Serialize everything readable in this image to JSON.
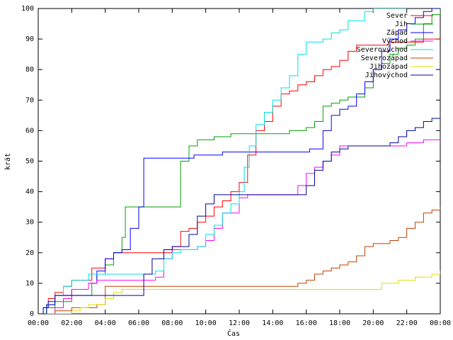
{
  "chart_data": {
    "type": "line",
    "title": "",
    "xlabel": "Čas",
    "ylabel": "krát",
    "xlim": [
      0,
      24
    ],
    "ylim": [
      0,
      100
    ],
    "x_ticks": [
      {
        "value": 0,
        "label": "00:00"
      },
      {
        "value": 2,
        "label": "02:00"
      },
      {
        "value": 4,
        "label": "04:00"
      },
      {
        "value": 6,
        "label": "06:00"
      },
      {
        "value": 8,
        "label": "08:00"
      },
      {
        "value": 10,
        "label": "10:00"
      },
      {
        "value": 12,
        "label": "12:00"
      },
      {
        "value": 14,
        "label": "14:00"
      },
      {
        "value": 16,
        "label": "16:00"
      },
      {
        "value": 18,
        "label": "18:00"
      },
      {
        "value": 20,
        "label": "20:00"
      },
      {
        "value": 22,
        "label": "22:00"
      },
      {
        "value": 24,
        "label": "00:00"
      }
    ],
    "y_ticks": [
      {
        "value": 0,
        "label": "0"
      },
      {
        "value": 10,
        "label": "10"
      },
      {
        "value": 20,
        "label": "20"
      },
      {
        "value": 30,
        "label": "30"
      },
      {
        "value": 40,
        "label": "40"
      },
      {
        "value": 50,
        "label": "50"
      },
      {
        "value": 60,
        "label": "60"
      },
      {
        "value": 70,
        "label": "70"
      },
      {
        "value": 80,
        "label": "80"
      },
      {
        "value": 90,
        "label": "90"
      },
      {
        "value": 100,
        "label": "100"
      }
    ],
    "grid": false,
    "legend_position": "top-right",
    "series": [
      {
        "name": "Sever",
        "color": "#ff0000",
        "x": [
          0,
          0.3,
          0.6,
          1,
          1.5,
          2,
          3.2,
          4,
          4.5,
          8,
          8.5,
          9,
          9.5,
          10,
          10.5,
          11,
          11.5,
          12,
          12.5,
          13,
          13.5,
          14,
          14.5,
          15,
          15.5,
          16,
          16.5,
          17,
          17.5,
          18,
          18.5,
          19,
          19.5,
          20,
          20.5,
          21,
          21.5,
          22,
          22.5,
          23,
          23.5,
          24
        ],
        "y": [
          0,
          2,
          5,
          7,
          9,
          11,
          15,
          18,
          20,
          22,
          27,
          28,
          30,
          32,
          35,
          37,
          40,
          43,
          52,
          60,
          63,
          68,
          72,
          73,
          75,
          76,
          78,
          80,
          81,
          83,
          86,
          88,
          88,
          88,
          88,
          89,
          89,
          89,
          89,
          90,
          90,
          90
        ]
      },
      {
        "name": "Jih",
        "color": "#00a000",
        "x": [
          0,
          0.5,
          1,
          2,
          3.2,
          3.5,
          4,
          4.5,
          5,
          5.2,
          8,
          8.5,
          9,
          9.5,
          10,
          10.5,
          11,
          11.5,
          12,
          12.5,
          13,
          13.5,
          14,
          14.5,
          15,
          15.5,
          16,
          16.5,
          17,
          17.5,
          18,
          18.5,
          19,
          19.5,
          20,
          20.5,
          21,
          21.5,
          22,
          22.5,
          23,
          23.5,
          24
        ],
        "y": [
          0,
          2,
          4,
          6,
          10,
          13,
          16,
          20,
          25,
          35,
          35,
          50,
          55,
          57,
          57,
          58,
          58,
          59,
          59,
          59,
          59,
          59,
          59,
          59,
          60,
          60,
          61,
          63,
          68,
          69,
          70,
          71,
          71,
          74,
          80,
          82,
          85,
          87,
          88,
          90,
          95,
          98,
          100
        ]
      },
      {
        "name": "Západ",
        "color": "#0000ff",
        "x": [
          0,
          0.3,
          0.6,
          1,
          2,
          3,
          3.5,
          4,
          4.5,
          5,
          5.5,
          6,
          6.3,
          7,
          8,
          9,
          9.3,
          10,
          11,
          12,
          13,
          14,
          15,
          16,
          16.2,
          17,
          17.5,
          18,
          18.5,
          19,
          19.5,
          20,
          20.5,
          21,
          21.5,
          22,
          22.5,
          23,
          23.5,
          24
        ],
        "y": [
          0,
          2,
          4,
          6,
          8,
          10,
          14,
          18,
          20,
          21,
          28,
          35,
          51,
          51,
          51,
          51,
          52,
          52,
          53,
          53,
          53,
          53,
          53,
          53,
          54,
          60,
          65,
          67,
          68,
          72,
          76,
          80,
          86,
          90,
          93,
          95,
          97,
          99,
          100,
          100
        ]
      },
      {
        "name": "Východ",
        "color": "#ff00ff",
        "x": [
          0,
          1,
          1.5,
          2,
          3,
          3.5,
          4,
          5,
          6,
          7,
          7.5,
          8,
          9,
          9.5,
          10,
          10.5,
          11,
          12,
          12.5,
          13,
          14,
          15,
          15.5,
          16,
          16.5,
          17,
          17.5,
          18,
          18.5,
          19,
          19.5,
          20,
          20.5,
          21,
          21.5,
          22,
          22.5,
          23,
          23.5,
          24
        ],
        "y": [
          0,
          2,
          5,
          8,
          10,
          11,
          11,
          11,
          11,
          12,
          18,
          21,
          21,
          22,
          24,
          28,
          33,
          38,
          39,
          39,
          39,
          39,
          42,
          46,
          48,
          50,
          52,
          55,
          55,
          55,
          55,
          55,
          55,
          55,
          55,
          56,
          56,
          57,
          57,
          57
        ]
      },
      {
        "name": "Severovýchod",
        "color": "#00e0e0",
        "x": [
          0,
          0.5,
          1,
          1.5,
          2,
          3,
          4,
          5,
          6,
          7,
          7.5,
          8,
          8.5,
          9,
          9.5,
          10,
          10.5,
          11,
          11.5,
          12,
          12.3,
          12.6,
          13,
          13.5,
          14,
          14.5,
          15,
          15.5,
          16,
          16.5,
          17,
          17.5,
          18,
          18.5,
          19,
          19.5,
          20,
          20.5,
          21,
          21.5,
          22
        ],
        "y": [
          0,
          3,
          6,
          9,
          11,
          13,
          13,
          13,
          13,
          14,
          18,
          20,
          21,
          21,
          22,
          26,
          29,
          33,
          36,
          40,
          48,
          55,
          62,
          66,
          70,
          74,
          78,
          85,
          89,
          89,
          90,
          92,
          93,
          96,
          96,
          99,
          100,
          100,
          100,
          100,
          100
        ]
      },
      {
        "name": "Severozápad",
        "color": "#c04000",
        "x": [
          0,
          1,
          2,
          3,
          3.5,
          4,
          6,
          8,
          10,
          12,
          14,
          15,
          15.5,
          16,
          16.5,
          17,
          17.5,
          18,
          18.5,
          19,
          19.5,
          20,
          20.5,
          21,
          21.5,
          22,
          22.5,
          23,
          23.5,
          24
        ],
        "y": [
          0,
          1,
          2,
          2,
          3,
          9,
          9,
          9,
          9,
          9,
          9,
          9,
          10,
          11,
          13,
          14,
          15,
          16,
          17,
          19,
          22,
          23,
          23,
          24,
          25,
          28,
          30,
          33,
          34,
          35
        ]
      },
      {
        "name": "Jihozápad",
        "color": "#e0e000",
        "x": [
          0,
          1,
          2,
          2.5,
          3,
          4,
          4.5,
          5,
          6,
          8,
          10,
          12,
          14,
          16,
          18,
          20,
          20.5,
          21,
          21.5,
          22,
          22.5,
          23,
          23.5,
          24
        ],
        "y": [
          0,
          0,
          1,
          2,
          3,
          5,
          7,
          8,
          8,
          8,
          8,
          8,
          8,
          8,
          8,
          8,
          10,
          10,
          11,
          11,
          12,
          12,
          13,
          14
        ]
      },
      {
        "name": "Jihovýchod",
        "color": "#0000a0",
        "x": [
          0,
          0.5,
          1,
          2,
          3,
          4,
          5,
          6,
          6.3,
          6.8,
          7.5,
          8,
          9,
          9.5,
          10,
          10.5,
          11,
          11.5,
          12,
          13,
          14,
          15,
          16,
          16.5,
          17,
          17.5,
          18,
          18.5,
          19,
          19.5,
          20,
          20.5,
          21,
          21.5,
          22,
          22.5,
          23,
          23.5,
          24
        ],
        "y": [
          0,
          3,
          6,
          6,
          6,
          6,
          6,
          6,
          13,
          18,
          21,
          22,
          26,
          32,
          36,
          39,
          39,
          39,
          39,
          39,
          39,
          39,
          42,
          47,
          50,
          53,
          54,
          55,
          55,
          55,
          55,
          55,
          56,
          58,
          60,
          61,
          63,
          64,
          66
        ]
      }
    ]
  }
}
